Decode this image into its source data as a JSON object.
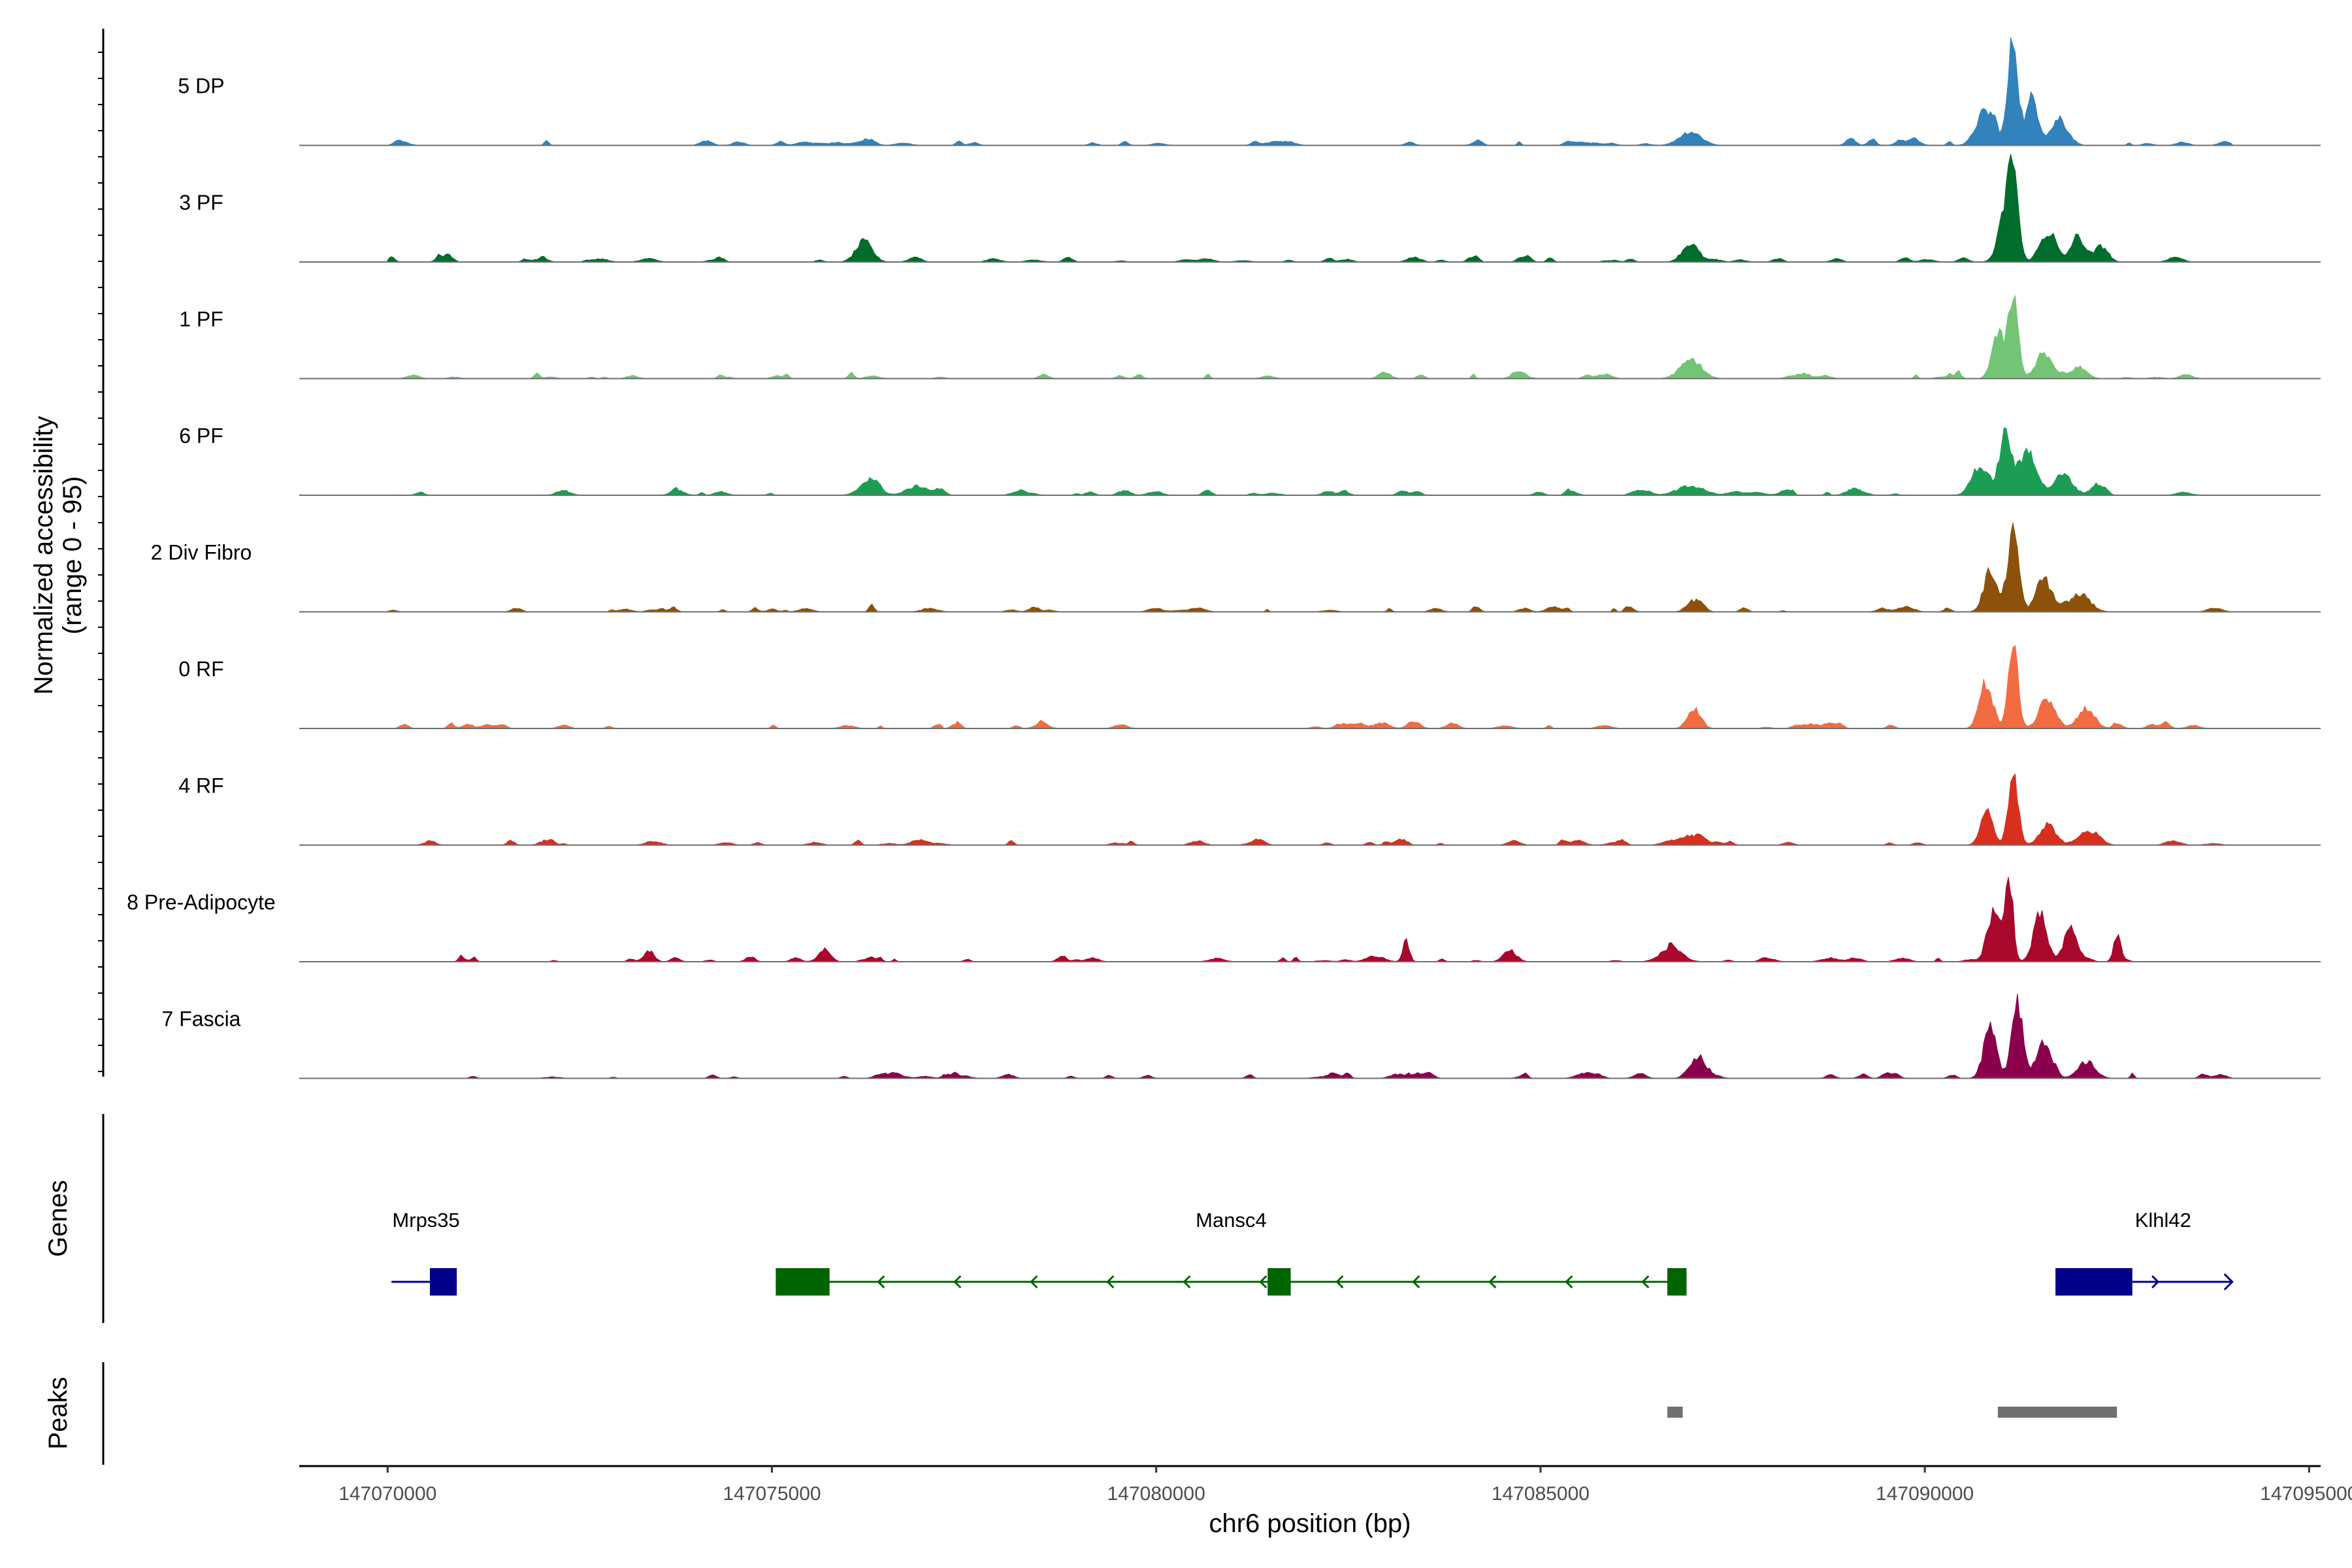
{
  "chart_data": {
    "type": "area",
    "title": "",
    "chromosome": "chr6",
    "xlabel": "chr6 position (bp)",
    "ylabel_line1": "Normalized accessibility",
    "ylabel_line2": "(range 0 - 95)",
    "xlim": [
      147068850,
      147095150
    ],
    "ylim": [
      0,
      95
    ],
    "x_ticks": [
      147070000,
      147075000,
      147080000,
      147085000,
      147090000,
      147095000
    ],
    "x_tick_labels": [
      "147070000",
      "147075000",
      "147080000",
      "147085000",
      "147090000",
      "147095000"
    ],
    "panel_labels": {
      "genes": "Genes",
      "peaks": "Peaks"
    },
    "series": [
      {
        "name": "5 DP",
        "color": "#3182BD",
        "peaks": [
          [
            147091150,
            95,
            90
          ],
          [
            147091400,
            42,
            110
          ],
          [
            147090800,
            28,
            170
          ],
          [
            147091750,
            22,
            160
          ],
          [
            147086950,
            12,
            200
          ],
          [
            147076250,
            6,
            120
          ]
        ]
      },
      {
        "name": "3 PF",
        "color": "#006D2C",
        "peaks": [
          [
            147091150,
            70,
            90
          ],
          [
            147091050,
            40,
            130
          ],
          [
            147091600,
            25,
            150
          ],
          [
            147092000,
            20,
            130
          ],
          [
            147092300,
            14,
            120
          ],
          [
            147086950,
            16,
            150
          ],
          [
            147076200,
            18,
            150
          ]
        ]
      },
      {
        "name": "1 PF",
        "color": "#74C476",
        "peaks": [
          [
            147091150,
            70,
            90
          ],
          [
            147090950,
            38,
            110
          ],
          [
            147091550,
            22,
            150
          ],
          [
            147092000,
            10,
            150
          ],
          [
            147086950,
            14,
            200
          ]
        ]
      },
      {
        "name": "6 PF",
        "color": "#1B9E54",
        "peaks": [
          [
            147091050,
            50,
            120
          ],
          [
            147091350,
            40,
            150
          ],
          [
            147090700,
            25,
            140
          ],
          [
            147091800,
            18,
            170
          ],
          [
            147092250,
            10,
            120
          ],
          [
            147076300,
            14,
            150
          ],
          [
            147076900,
            8,
            200
          ],
          [
            147086950,
            8,
            250
          ]
        ]
      },
      {
        "name": "2 Div Fibro",
        "color": "#8C510A",
        "peaks": [
          [
            147091150,
            72,
            100
          ],
          [
            147090850,
            35,
            120
          ],
          [
            147091550,
            30,
            140
          ],
          [
            147092000,
            14,
            150
          ],
          [
            147087000,
            10,
            130
          ]
        ]
      },
      {
        "name": "0 RF",
        "color": "#F16C42",
        "peaks": [
          [
            147091150,
            70,
            90
          ],
          [
            147090800,
            40,
            120
          ],
          [
            147091600,
            26,
            150
          ],
          [
            147092100,
            18,
            150
          ],
          [
            147087000,
            18,
            120
          ]
        ]
      },
      {
        "name": "4 RF",
        "color": "#D7301F",
        "peaks": [
          [
            147091150,
            65,
            90
          ],
          [
            147090800,
            30,
            110
          ],
          [
            147091600,
            18,
            150
          ],
          [
            147092200,
            8,
            150
          ],
          [
            147086950,
            8,
            200
          ]
        ]
      },
      {
        "name": "8 Pre-Adipocyte",
        "color": "#A8082C",
        "peaks": [
          [
            147091100,
            75,
            70
          ],
          [
            147090900,
            45,
            120
          ],
          [
            147091500,
            40,
            120
          ],
          [
            147091900,
            30,
            120
          ],
          [
            147092500,
            20,
            60
          ],
          [
            147083250,
            18,
            60
          ],
          [
            147084600,
            10,
            120
          ],
          [
            147086700,
            10,
            200
          ],
          [
            147073400,
            10,
            90
          ],
          [
            147075700,
            10,
            90
          ]
        ]
      },
      {
        "name": "7 Fascia",
        "color": "#8B004D",
        "peaks": [
          [
            147091200,
            72,
            100
          ],
          [
            147090850,
            42,
            120
          ],
          [
            147091550,
            32,
            140
          ],
          [
            147092100,
            14,
            150
          ],
          [
            147087050,
            18,
            150
          ]
        ]
      }
    ],
    "genes": [
      {
        "name": "Mrps35",
        "color": "#00008B",
        "strand": "+",
        "start": 147070050,
        "end": 147070900,
        "exons": [
          [
            147070550,
            147070900
          ]
        ],
        "show_arrows": false
      },
      {
        "name": "Mansc4",
        "color": "#006400",
        "strand": "-",
        "start": 147075050,
        "end": 147086900,
        "exons": [
          [
            147075050,
            147075750
          ],
          [
            147081450,
            147081750
          ],
          [
            147086650,
            147086900
          ]
        ],
        "show_arrows": true
      },
      {
        "name": "Klhl42",
        "color": "#00008B",
        "strand": "+",
        "start": 147091700,
        "end": 147094000,
        "exons": [
          [
            147091700,
            147092700
          ]
        ],
        "show_arrows": true
      }
    ],
    "peak_regions": [
      {
        "start": 147086650,
        "end": 147086850,
        "color": "#707070"
      },
      {
        "start": 147090950,
        "end": 147092500,
        "color": "#707070"
      }
    ]
  }
}
